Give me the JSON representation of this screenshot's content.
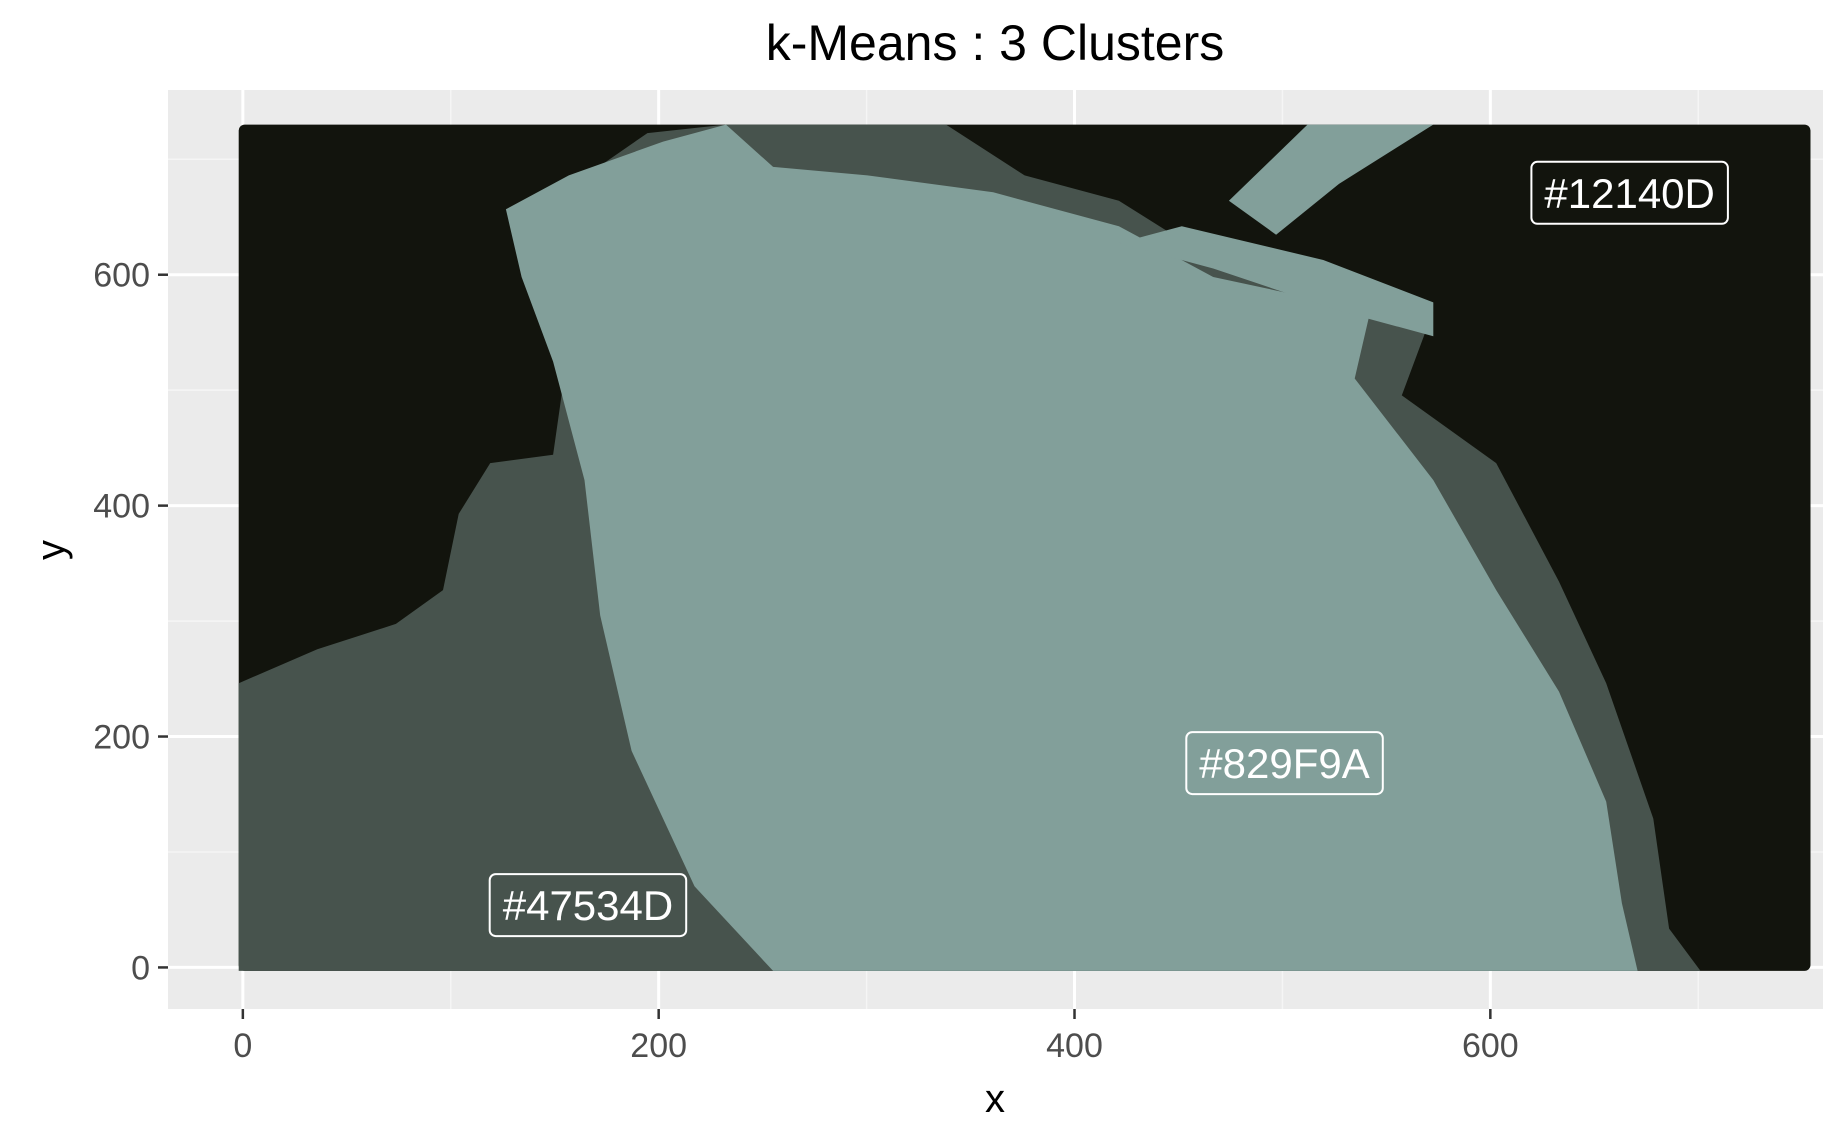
{
  "chart_data": {
    "type": "scatter",
    "title": "k-Means : 3 Clusters",
    "xlabel": "x",
    "ylabel": "y",
    "xlim": [
      -36,
      760
    ],
    "ylim": [
      -36,
      760
    ],
    "x_ticks": [
      0,
      200,
      400,
      600
    ],
    "y_ticks": [
      0,
      200,
      400,
      600
    ],
    "x_tick_labels": [
      "0",
      "200",
      "400",
      "600"
    ],
    "y_tick_labels": [
      "0",
      "200",
      "400",
      "600"
    ],
    "grid": true,
    "image_extent": {
      "x": [
        -2,
        754
      ],
      "y": [
        -3,
        730
      ]
    },
    "clusters": [
      {
        "label": "#12140D",
        "color": "#12140D",
        "x": 667,
        "y": 671
      },
      {
        "label": "#47534D",
        "color": "#47534D",
        "x": 166,
        "y": 54
      },
      {
        "label": "#829F9A",
        "color": "#829F9A",
        "x": 501,
        "y": 177
      }
    ],
    "colors": {
      "panel": "#EBEBEB",
      "grid_major": "#FFFFFF",
      "grid_minor": "#F5F5F5",
      "tick_text": "#4D4D4D",
      "label_text": "#FFFFFF"
    }
  }
}
